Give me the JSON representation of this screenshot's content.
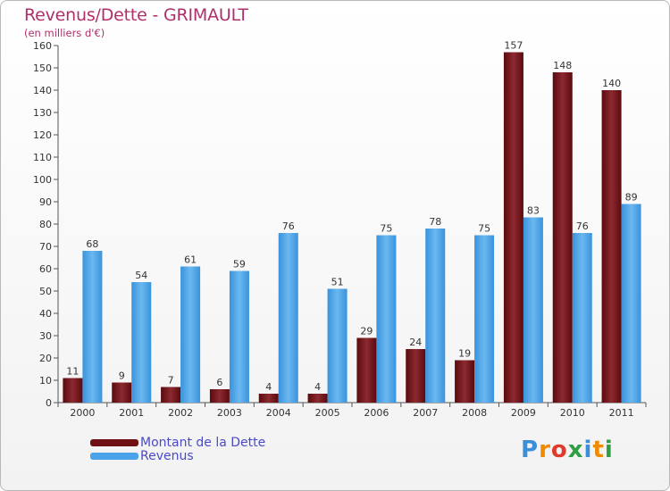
{
  "title": "Revenus/Dette - GRIMAULT",
  "subtitle": "(en milliers d'€)",
  "logo_text": "Proxiti",
  "legend": [
    {
      "label": "Montant de la Dette",
      "color": "#6e1014"
    },
    {
      "label": "Revenus",
      "color": "#4aa3e8"
    }
  ],
  "chart_data": {
    "type": "bar",
    "title": "Revenus/Dette - GRIMAULT",
    "ylabel": "(en milliers d'€)",
    "xlabel": "",
    "categories": [
      "2000",
      "2001",
      "2002",
      "2003",
      "2004",
      "2005",
      "2006",
      "2007",
      "2008",
      "2009",
      "2010",
      "2011"
    ],
    "series": [
      {
        "name": "Montant de la Dette",
        "values": [
          11,
          9,
          7,
          6,
          4,
          4,
          29,
          24,
          19,
          157,
          148,
          140
        ]
      },
      {
        "name": "Revenus",
        "values": [
          68,
          54,
          61,
          59,
          76,
          51,
          75,
          78,
          75,
          83,
          76,
          89
        ]
      }
    ],
    "ylim": [
      0,
      160
    ],
    "yticks": [
      0,
      10,
      20,
      30,
      40,
      50,
      60,
      70,
      80,
      90,
      100,
      110,
      120,
      130,
      140,
      150,
      160
    ],
    "grid": false,
    "legend_position": "bottom-left"
  }
}
